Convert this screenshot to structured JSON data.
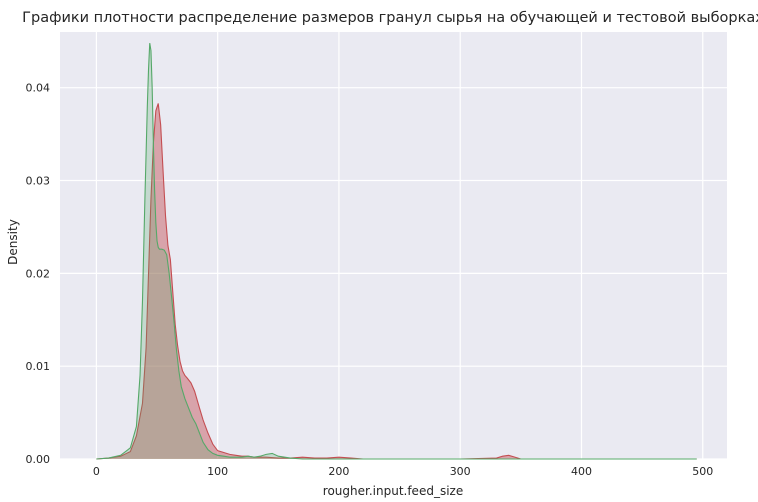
{
  "chart_data": {
    "type": "area",
    "title": "Графики плотности распределение размеров гранул сырья на обучающей и тестовой выборках",
    "xlabel": "rougher.input.feed_size",
    "ylabel": "Density",
    "xlim": [
      -30,
      520
    ],
    "ylim": [
      0,
      0.046
    ],
    "x_ticks": [
      0,
      100,
      200,
      300,
      400,
      500
    ],
    "y_ticks": [
      0.0,
      0.01,
      0.02,
      0.03,
      0.04
    ],
    "x_tick_labels": [
      "0",
      "100",
      "200",
      "300",
      "400",
      "500"
    ],
    "y_tick_labels": [
      "0.00",
      "0.01",
      "0.02",
      "0.03",
      "0.04"
    ],
    "grid": true,
    "background_color": "#eaeaf2",
    "grid_color": "#ffffff",
    "series": [
      {
        "color": "#c44e52",
        "fill_opacity": 0.45,
        "x": [
          0,
          10,
          20,
          28,
          33,
          38,
          41,
          43,
          45,
          47,
          49,
          51,
          53,
          55,
          57,
          59,
          61,
          63,
          65,
          67,
          69,
          71,
          73,
          75,
          78,
          81,
          85,
          88,
          92,
          96,
          100,
          105,
          110,
          115,
          120,
          125,
          130,
          140,
          150,
          160,
          170,
          180,
          190,
          200,
          210,
          220,
          250,
          300,
          330,
          335,
          340,
          345,
          350,
          400,
          450,
          495
        ],
        "y": [
          0.0,
          0.0001,
          0.0003,
          0.0008,
          0.0025,
          0.006,
          0.012,
          0.02,
          0.028,
          0.034,
          0.0375,
          0.0383,
          0.036,
          0.031,
          0.0262,
          0.023,
          0.0215,
          0.018,
          0.0145,
          0.0122,
          0.0105,
          0.0095,
          0.009,
          0.0087,
          0.0082,
          0.0073,
          0.0055,
          0.0042,
          0.0028,
          0.0016,
          0.0009,
          0.0007,
          0.0005,
          0.0004,
          0.0003,
          0.0003,
          0.0002,
          0.0002,
          0.0001,
          0.0001,
          0.0002,
          0.0001,
          0.0001,
          0.0002,
          0.0001,
          0.0,
          0.0,
          0.0,
          0.0001,
          0.0003,
          0.0004,
          0.0002,
          0.0,
          0.0,
          0.0,
          0.0
        ]
      },
      {
        "color": "#55a868",
        "fill_opacity": 0.25,
        "x": [
          0,
          10,
          20,
          28,
          33,
          36,
          38,
          40,
          42,
          43,
          44,
          45,
          46,
          47,
          48,
          49,
          50,
          51,
          52,
          54,
          56,
          58,
          60,
          62,
          64,
          66,
          68,
          70,
          73,
          76,
          79,
          82,
          85,
          88,
          92,
          96,
          100,
          105,
          110,
          115,
          120,
          125,
          130,
          135,
          140,
          145,
          150,
          160,
          170,
          180,
          200,
          250,
          300,
          400,
          495
        ],
        "y": [
          0.0,
          0.0001,
          0.0004,
          0.0012,
          0.0035,
          0.009,
          0.017,
          0.028,
          0.038,
          0.042,
          0.0448,
          0.044,
          0.04,
          0.034,
          0.029,
          0.0255,
          0.0235,
          0.0228,
          0.0226,
          0.0226,
          0.0225,
          0.022,
          0.02,
          0.0175,
          0.0148,
          0.0118,
          0.0095,
          0.0078,
          0.0065,
          0.0055,
          0.0045,
          0.0038,
          0.0028,
          0.0018,
          0.001,
          0.0006,
          0.0004,
          0.0003,
          0.0002,
          0.0002,
          0.0002,
          0.0003,
          0.0002,
          0.0003,
          0.0005,
          0.0006,
          0.0003,
          0.0001,
          0.0,
          0.0,
          0.0,
          0.0,
          0.0,
          0.0,
          0.0
        ]
      }
    ]
  }
}
